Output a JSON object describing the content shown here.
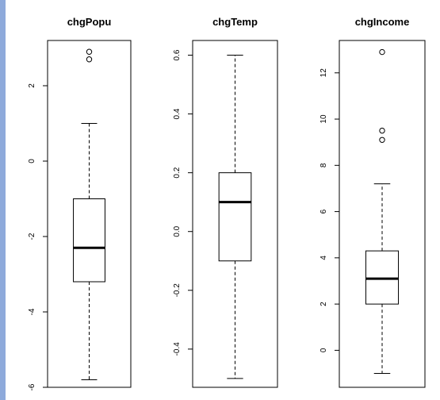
{
  "chart_data": [
    {
      "type": "boxplot",
      "title": "chgPopu",
      "ylim": [
        -6,
        3.2
      ],
      "ticks": [
        -6,
        -4,
        -2,
        0,
        2
      ],
      "tick_labels": [
        "-6",
        "-4",
        "-2",
        "0",
        "2"
      ],
      "box": {
        "whisker_low": -5.8,
        "q1": -3.2,
        "median": -2.3,
        "q3": -1.0,
        "whisker_high": 1.0
      },
      "outliers": [
        2.7,
        2.9
      ]
    },
    {
      "type": "boxplot",
      "title": "chgTemp",
      "ylim": [
        -0.53,
        0.65
      ],
      "ticks": [
        -0.4,
        -0.2,
        0.0,
        0.2,
        0.4,
        0.6
      ],
      "tick_labels": [
        "-0.4",
        "-0.2",
        "0.0",
        "0.2",
        "0.4",
        "0.6"
      ],
      "box": {
        "whisker_low": -0.5,
        "q1": -0.1,
        "median": 0.1,
        "q3": 0.2,
        "whisker_high": 0.6
      },
      "outliers": []
    },
    {
      "type": "boxplot",
      "title": "chgIncome",
      "ylim": [
        -1.6,
        13.4
      ],
      "ticks": [
        0,
        2,
        4,
        6,
        8,
        10,
        12
      ],
      "tick_labels": [
        "0",
        "2",
        "4",
        "6",
        "8",
        "10",
        "12"
      ],
      "box": {
        "whisker_low": -1.0,
        "q1": 2.0,
        "median": 3.1,
        "q3": 4.3,
        "whisker_high": 7.2
      },
      "outliers": [
        9.1,
        9.5,
        12.9
      ]
    }
  ]
}
